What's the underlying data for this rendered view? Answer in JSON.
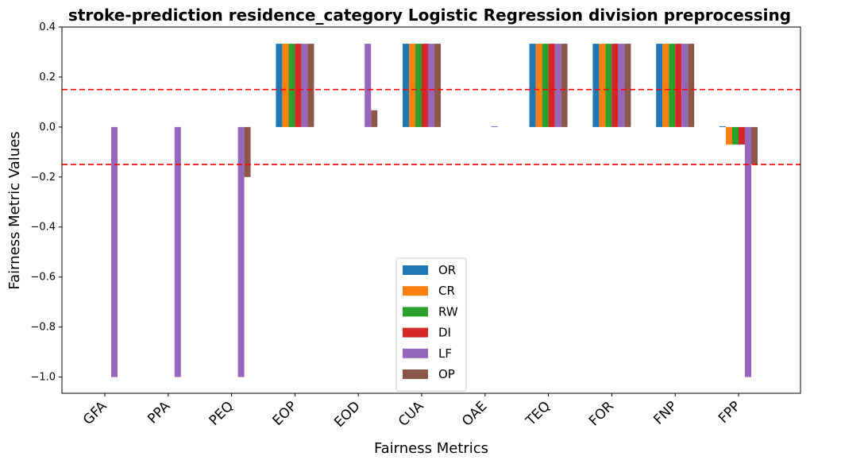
{
  "chart_data": {
    "type": "bar",
    "title": "stroke-prediction residence_category Logistic Regression division preprocessing",
    "xlabel": "Fairness Metrics",
    "ylabel": "Fairness Metric Values",
    "ylim": [
      -1.065,
      0.4
    ],
    "yticks": [
      0.4,
      0.2,
      0.0,
      -0.2,
      -0.4,
      -0.6,
      -0.8,
      -1.0
    ],
    "ytick_labels": [
      "0.4",
      "0.2",
      "0.0",
      "−0.2",
      "−0.4",
      "−0.6",
      "−0.8",
      "−1.0"
    ],
    "categories": [
      "GFA",
      "PPA",
      "PEQ",
      "EOP",
      "EOD",
      "CUA",
      "OAE",
      "TEQ",
      "FOR",
      "FNP",
      "FPP"
    ],
    "series": [
      {
        "name": "OR",
        "color": "#1f77b4",
        "values": [
          0,
          0,
          0,
          0.333,
          0,
          0.333,
          0,
          0.333,
          0.333,
          0.333,
          0.003
        ]
      },
      {
        "name": "CR",
        "color": "#ff7f0e",
        "values": [
          0,
          0,
          0,
          0.333,
          0,
          0.333,
          0,
          0.333,
          0.333,
          0.333,
          -0.07
        ]
      },
      {
        "name": "RW",
        "color": "#2ca02c",
        "values": [
          0,
          0,
          0,
          0.333,
          0,
          0.333,
          0,
          0.333,
          0.333,
          0.333,
          -0.07
        ]
      },
      {
        "name": "DI",
        "color": "#d62728",
        "values": [
          0,
          0,
          0,
          0.333,
          0,
          0.333,
          0,
          0.333,
          0.333,
          0.333,
          -0.07
        ]
      },
      {
        "name": "LF",
        "color": "#9467bd",
        "values": [
          -1.0,
          -1.0,
          -1.0,
          0.333,
          0.333,
          0.333,
          0.003,
          0.333,
          0.333,
          0.333,
          -1.0
        ]
      },
      {
        "name": "OP",
        "color": "#8c564b",
        "values": [
          0,
          0,
          -0.2,
          0.333,
          0.067,
          0.333,
          0,
          0.333,
          0.333,
          0.333,
          -0.15
        ]
      }
    ],
    "threshold_lines": {
      "values": [
        0.15,
        -0.15
      ],
      "color": "#ff0000",
      "style": "dashed"
    },
    "legend_placement": "lower-center",
    "grid": false
  }
}
